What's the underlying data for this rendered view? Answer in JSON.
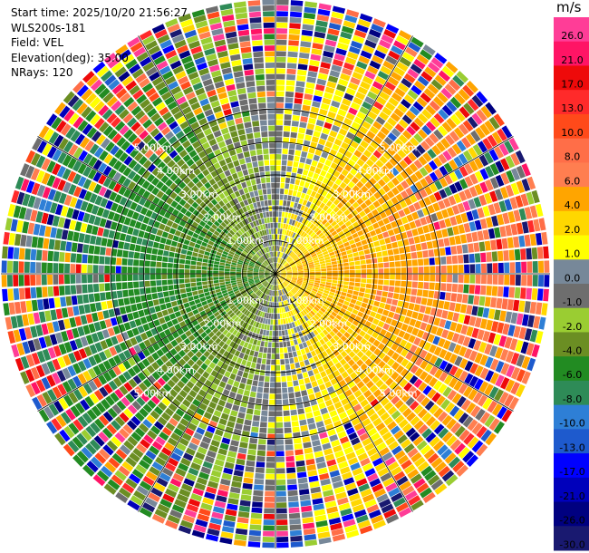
{
  "info": {
    "start_time": "Start time: 2025/10/20 21:56:27",
    "instrument": "WLS200s-181",
    "field": "Field: VEL",
    "elevation": "Elevation(deg): 35.00",
    "nrays": "NRays: 120"
  },
  "chart_data": {
    "type": "heatmap",
    "projection": "polar",
    "field": "VEL",
    "units": "m/s",
    "elevation_deg": 35.0,
    "n_rays": 120,
    "range_rings": [
      {
        "value": "1.00km",
        "text": "1.00km"
      },
      {
        "value": "2.00km",
        "text": "2.00km"
      },
      {
        "value": "3.00km",
        "text": "3.00km"
      },
      {
        "value": "4.00km",
        "text": "4.00km"
      },
      {
        "value": "5.00km",
        "text": "5.00km"
      }
    ],
    "colorbar": {
      "title": "m/s",
      "ticks": [
        "26.0",
        "21.0",
        "17.0",
        "13.0",
        "10.0",
        "8.0",
        "6.0",
        "4.0",
        "2.0",
        "1.0",
        "0.0",
        "-1.0",
        "-2.0",
        "-4.0",
        "-6.0",
        "-8.0",
        "-10.0",
        "-13.0",
        "-17.0",
        "-21.0",
        "-26.0",
        "-30.0"
      ],
      "colors": [
        "#ff3d97",
        "#ff1465",
        "#ee0a0a",
        "#ff2a2a",
        "#ff4a1a",
        "#ff6e48",
        "#ff7e50",
        "#ffa500",
        "#ffd700",
        "#ffff00",
        "#778899",
        "#6e6e6e",
        "#9acd32",
        "#6b8e23",
        "#228b22",
        "#2e8b57",
        "#2e7fd6",
        "#1e5acd",
        "#0000ff",
        "#0000bb",
        "#000080",
        "#191970"
      ],
      "range": [
        -30.0,
        26.0
      ]
    }
  }
}
